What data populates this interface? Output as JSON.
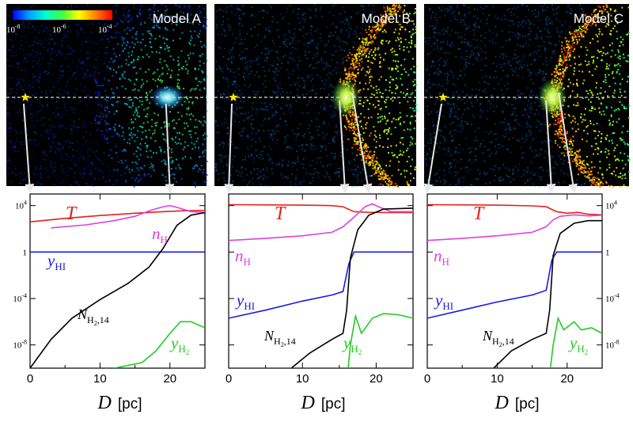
{
  "colorbar": {
    "ticks": [
      "10",
      "10",
      "10"
    ],
    "exponents": [
      "-8",
      "-6",
      "-4"
    ],
    "range": [
      1e-08,
      0.0001
    ],
    "scale": "log",
    "colormap": [
      "#0000ff",
      "#00a0ff",
      "#00ffd0",
      "#40ff40",
      "#ffff00",
      "#ff8000",
      "#ff0000"
    ]
  },
  "axes": {
    "x_symbol": "D",
    "x_unit": "[pc]",
    "x_ticks": [
      "0",
      "10",
      "20"
    ],
    "y_tick_base": "10",
    "y_ticks": [
      {
        "base": "10",
        "exp": "4"
      },
      {
        "base": "1",
        "exp": ""
      },
      {
        "base": "10",
        "exp": "-4"
      },
      {
        "base": "10",
        "exp": "-8"
      }
    ]
  },
  "colors": {
    "T": "#e8201c",
    "nH": "#e040e0",
    "yHI": "#1a1ae6",
    "NH2": "#000000",
    "yH2": "#22cc22",
    "star": "#ffe400",
    "arrow": "#e8e8e8",
    "panel_bg": "#000000"
  },
  "chart_data": [
    {
      "type": "line",
      "title": "Model A",
      "star_D": 0.0,
      "front_D": 20.0,
      "xlim": [
        0,
        25
      ],
      "ylim": [
        1e-10,
        100000.0
      ],
      "yscale": "log",
      "series": [
        {
          "name": "T",
          "key": "T",
          "points": [
            [
              0,
              400
            ],
            [
              5,
              800
            ],
            [
              10,
              1400
            ],
            [
              15,
              2200
            ],
            [
              18,
              2800
            ],
            [
              20,
              3200
            ],
            [
              22,
              3600
            ],
            [
              25,
              3800
            ]
          ]
        },
        {
          "name": "n_H",
          "key": "nH",
          "points": [
            [
              3,
              120
            ],
            [
              8,
              220
            ],
            [
              12,
              500
            ],
            [
              15,
              1200
            ],
            [
              17,
              3500
            ],
            [
              19,
              8000
            ],
            [
              20,
              10000
            ],
            [
              21,
              7000
            ],
            [
              23,
              3000
            ],
            [
              25,
              2500
            ]
          ]
        },
        {
          "name": "y_HI",
          "key": "yHI",
          "points": [
            [
              0,
              1
            ],
            [
              25,
              1
            ]
          ]
        },
        {
          "name": "N_H2,14",
          "key": "NH2",
          "points": [
            [
              0,
              1e-10
            ],
            [
              3,
              3e-08
            ],
            [
              6,
              2e-06
            ],
            [
              10,
              8e-05
            ],
            [
              14,
              0.002
            ],
            [
              17,
              0.05
            ],
            [
              19,
              2
            ],
            [
              21,
              200
            ],
            [
              23,
              1500
            ],
            [
              25,
              2500
            ]
          ]
        },
        {
          "name": "y_H2",
          "key": "yH2",
          "points": [
            [
              12,
              1e-10
            ],
            [
              16,
              3e-10
            ],
            [
              18,
              3e-09
            ],
            [
              20,
              1e-07
            ],
            [
              21.5,
              1e-06
            ],
            [
              23,
              1e-06
            ],
            [
              25,
              3e-07
            ]
          ]
        }
      ],
      "series_labels": {
        "T": "T",
        "nH": "n",
        "nH_sub": "H",
        "yHI": "y",
        "yHI_sub": "HI",
        "NH2": "N",
        "NH2_sub": "H",
        "NH2_subsub": "2",
        "NH2_sub2": ",14",
        "yH2": "y",
        "yH2_sub": "H",
        "yH2_subsub": "2"
      }
    },
    {
      "type": "line",
      "title": "Model B",
      "star_D": 0.0,
      "front_D": 16.0,
      "xlim": [
        0,
        25
      ],
      "ylim": [
        1e-10,
        100000.0
      ],
      "yscale": "log",
      "series": [
        {
          "name": "T",
          "key": "T",
          "points": [
            [
              0,
              12000
            ],
            [
              10,
              11000
            ],
            [
              14,
              10000
            ],
            [
              15.5,
              8000
            ],
            [
              17,
              3000
            ],
            [
              19,
              2600
            ],
            [
              22,
              2500
            ],
            [
              25,
              2500
            ]
          ]
        },
        {
          "name": "n_H",
          "key": "nH",
          "points": [
            [
              0,
              10
            ],
            [
              5,
              15
            ],
            [
              10,
              25
            ],
            [
              14,
              50
            ],
            [
              15.5,
              150
            ],
            [
              17,
              1000
            ],
            [
              18.5,
              8000
            ],
            [
              19.5,
              14000
            ],
            [
              20.5,
              7000
            ],
            [
              22,
              3000
            ],
            [
              25,
              3000
            ]
          ]
        },
        {
          "name": "y_HI",
          "key": "yHI",
          "points": [
            [
              0,
              2e-06
            ],
            [
              5,
              1e-05
            ],
            [
              10,
              6e-05
            ],
            [
              14,
              0.0002
            ],
            [
              15.5,
              0.0004
            ],
            [
              16.3,
              0.1
            ],
            [
              17,
              1
            ],
            [
              25,
              1
            ]
          ]
        },
        {
          "name": "N_H2,14",
          "key": "NH2",
          "points": [
            [
              8.5,
              1e-10
            ],
            [
              11,
              2e-09
            ],
            [
              14,
              3e-08
            ],
            [
              15.5,
              1e-07
            ],
            [
              16,
              1e-05
            ],
            [
              16.5,
              0.3
            ],
            [
              17.5,
              80
            ],
            [
              19,
              1500
            ],
            [
              21,
              5000
            ],
            [
              25,
              6000
            ]
          ]
        },
        {
          "name": "y_H2",
          "key": "yH2",
          "points": [
            [
              16.2,
              1e-10
            ],
            [
              16.5,
              1e-08
            ],
            [
              17.2,
              3e-06
            ],
            [
              18,
              1e-07
            ],
            [
              19.5,
              2e-06
            ],
            [
              21,
              5e-06
            ],
            [
              23,
              4e-06
            ],
            [
              25,
              2e-06
            ]
          ]
        }
      ],
      "series_labels": {
        "T": "T",
        "nH": "n",
        "nH_sub": "H",
        "yHI": "y",
        "yHI_sub": "HI",
        "NH2": "N",
        "NH2_sub": "H",
        "NH2_subsub": "2",
        "NH2_sub2": ",14",
        "yH2": "y",
        "yH2_sub": "H",
        "yH2_subsub": "2"
      }
    },
    {
      "type": "line",
      "title": "Model C",
      "star_D": 0.0,
      "front_D": 18.0,
      "xlim": [
        0,
        25
      ],
      "ylim": [
        1e-10,
        100000.0
      ],
      "yscale": "log",
      "series": [
        {
          "name": "T",
          "key": "T",
          "points": [
            [
              0,
              12000
            ],
            [
              10,
              11000
            ],
            [
              15,
              9500
            ],
            [
              17,
              8000
            ],
            [
              18.5,
              3000
            ],
            [
              20,
              2200
            ],
            [
              21.5,
              2600
            ],
            [
              23,
              1800
            ],
            [
              25,
              1600
            ]
          ]
        },
        {
          "name": "n_H",
          "key": "nH",
          "points": [
            [
              0,
              10
            ],
            [
              5,
              15
            ],
            [
              10,
              25
            ],
            [
              15,
              50
            ],
            [
              17,
              150
            ],
            [
              18,
              600
            ],
            [
              19,
              1200
            ],
            [
              21,
              1600
            ],
            [
              23,
              1300
            ],
            [
              25,
              1500
            ]
          ]
        },
        {
          "name": "y_HI",
          "key": "yHI",
          "points": [
            [
              0,
              2e-06
            ],
            [
              5,
              1e-05
            ],
            [
              10,
              5e-05
            ],
            [
              15,
              0.0002
            ],
            [
              17,
              0.0005
            ],
            [
              17.8,
              0.2
            ],
            [
              18.5,
              1
            ],
            [
              25,
              1
            ]
          ]
        },
        {
          "name": "N_H2,14",
          "key": "NH2",
          "points": [
            [
              9.5,
              1e-10
            ],
            [
              12,
              3e-09
            ],
            [
              15,
              3e-08
            ],
            [
              17,
              1e-07
            ],
            [
              17.5,
              1e-05
            ],
            [
              18,
              0.5
            ],
            [
              19,
              40
            ],
            [
              21,
              300
            ],
            [
              23,
              500
            ],
            [
              25,
              500
            ]
          ]
        },
        {
          "name": "y_H2",
          "key": "yH2",
          "points": [
            [
              17.6,
              1e-10
            ],
            [
              18,
              1e-08
            ],
            [
              18.7,
              2e-06
            ],
            [
              19.5,
              2e-07
            ],
            [
              21,
              1e-06
            ],
            [
              22,
              2e-07
            ],
            [
              23.5,
              3e-07
            ],
            [
              25,
              1e-07
            ]
          ]
        }
      ],
      "series_labels": {
        "T": "T",
        "nH": "n",
        "nH_sub": "H",
        "yHI": "y",
        "yHI_sub": "HI",
        "NH2": "N",
        "NH2_sub": "H",
        "NH2_subsub": "2",
        "NH2_sub2": ",14",
        "yH2": "y",
        "yH2_sub": "H",
        "yH2_subsub": "2"
      }
    }
  ]
}
